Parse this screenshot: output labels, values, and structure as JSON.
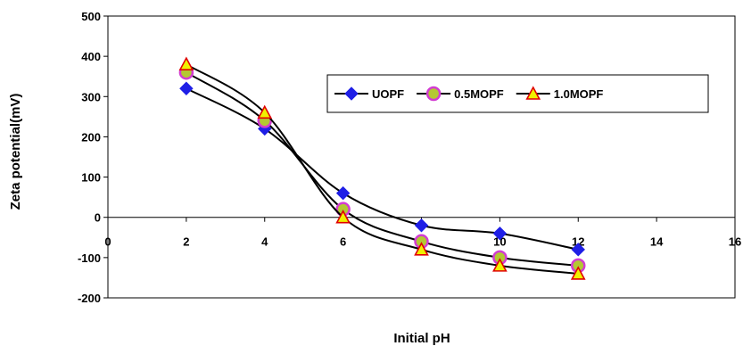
{
  "chart_data": {
    "type": "line",
    "title": "",
    "xlabel": "Initial pH",
    "ylabel": "Zeta potential(mV)",
    "xlim": [
      0,
      16
    ],
    "ylim": [
      -200,
      500
    ],
    "xticks": [
      0,
      2,
      4,
      6,
      8,
      10,
      12,
      14,
      16
    ],
    "yticks": [
      -200,
      -100,
      0,
      100,
      200,
      300,
      400,
      500
    ],
    "grid": false,
    "legend_position": "top-right",
    "series": [
      {
        "name": "UOPF",
        "marker": "diamond",
        "marker_color": "#1f1fe6",
        "x": [
          2,
          4,
          6,
          8,
          10,
          12
        ],
        "y": [
          320,
          220,
          60,
          -20,
          -40,
          -80
        ]
      },
      {
        "name": "0.5MOPF",
        "marker": "circle",
        "marker_color": "#b4c832",
        "marker_edge": "#d23cd2",
        "x": [
          2,
          4,
          6,
          8,
          10,
          12
        ],
        "y": [
          360,
          240,
          20,
          -60,
          -100,
          -120
        ]
      },
      {
        "name": "1.0MOPF",
        "marker": "triangle",
        "marker_color": "#f0f000",
        "marker_edge": "#e00000",
        "x": [
          2,
          4,
          6,
          8,
          10,
          12
        ],
        "y": [
          380,
          260,
          0,
          -80,
          -120,
          -140
        ]
      }
    ]
  }
}
